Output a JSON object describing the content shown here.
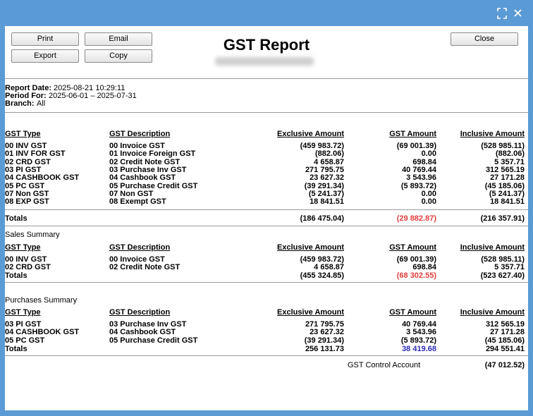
{
  "window": {
    "buttons": [
      "Print",
      "Email",
      "Export",
      "Copy",
      "Close"
    ]
  },
  "header": {
    "title": "GST Report"
  },
  "report_info": [
    {
      "label": "Report Date:",
      "value": "2025-08-21 10:29:11"
    },
    {
      "label": "Period For:",
      "value": "2025-06-01 – 2025-07-31"
    },
    {
      "label": "Branch:",
      "value": "All"
    }
  ],
  "columns": [
    "GST Type",
    "GST Description",
    "Exclusive Amount",
    "GST Amount",
    "Inclusive Amount"
  ],
  "main": {
    "rows": [
      [
        "00 INV GST",
        "00 Invoice GST",
        "(459 983.72)",
        "(69 001.39)",
        "(528 985.11)"
      ],
      [
        "01 INV FOR GST",
        "01 Invoice Foreign GST",
        "(882.06)",
        "0.00",
        "(882.06)"
      ],
      [
        "02 CRD GST",
        "02 Credit Note GST",
        "4 658.87",
        "698.84",
        "5 357.71"
      ],
      [
        "03 PI GST",
        "03 Purchase Inv GST",
        "271 795.75",
        "40 769.44",
        "312 565.19"
      ],
      [
        "04 CASHBOOK GST",
        "04 Cashbook GST",
        "23 627.32",
        "3 543.96",
        "27 171.28"
      ],
      [
        "05 PC GST",
        "05 Purchase Credit GST",
        "(39 291.34)",
        "(5 893.72)",
        "(45 185.06)"
      ],
      [
        "07 Non GST",
        "07 Non GST",
        "(5 241.37)",
        "0.00",
        "(5 241.37)"
      ],
      [
        "08 EXP GST",
        "08 Exempt GST",
        "18 841.51",
        "0.00",
        "18 841.51"
      ]
    ],
    "totals": {
      "label": "Totals",
      "values": [
        "(186 475.04)",
        "(29 882.87)",
        "(216 357.91)"
      ],
      "gst_color": "#e03c3c"
    }
  },
  "sales": {
    "title": "Sales Summary",
    "rows": [
      [
        "00 INV GST",
        "00 Invoice GST",
        "(459 983.72)",
        "(69 001.39)",
        "(528 985.11)"
      ],
      [
        "02 CRD GST",
        "02 Credit Note GST",
        "4 658.87",
        "698.84",
        "5 357.71"
      ]
    ],
    "totals": {
      "label": "Totals",
      "values": [
        "(455 324.85)",
        "(68 302.55)",
        "(523 627.40)"
      ],
      "gst_color": "#e03c3c"
    }
  },
  "purchases": {
    "title": "Purchases Summary",
    "rows": [
      [
        "03 PI GST",
        "03 Purchase Inv GST",
        "271 795.75",
        "40 769.44",
        "312 565.19"
      ],
      [
        "04 CASHBOOK GST",
        "04 Cashbook GST",
        "23 627.32",
        "3 543.96",
        "27 171.28"
      ],
      [
        "05 PC GST",
        "05 Purchase Credit GST",
        "(39 291.34)",
        "(5 893.72)",
        "(45 185.06)"
      ]
    ],
    "totals": {
      "label": "Totals",
      "values": [
        "256 131.73",
        "38 419.68",
        "294 551.41"
      ],
      "gst_color": "#2a2ab8"
    }
  },
  "control": {
    "label": "GST Control Account",
    "value": "(47 012.52)"
  }
}
